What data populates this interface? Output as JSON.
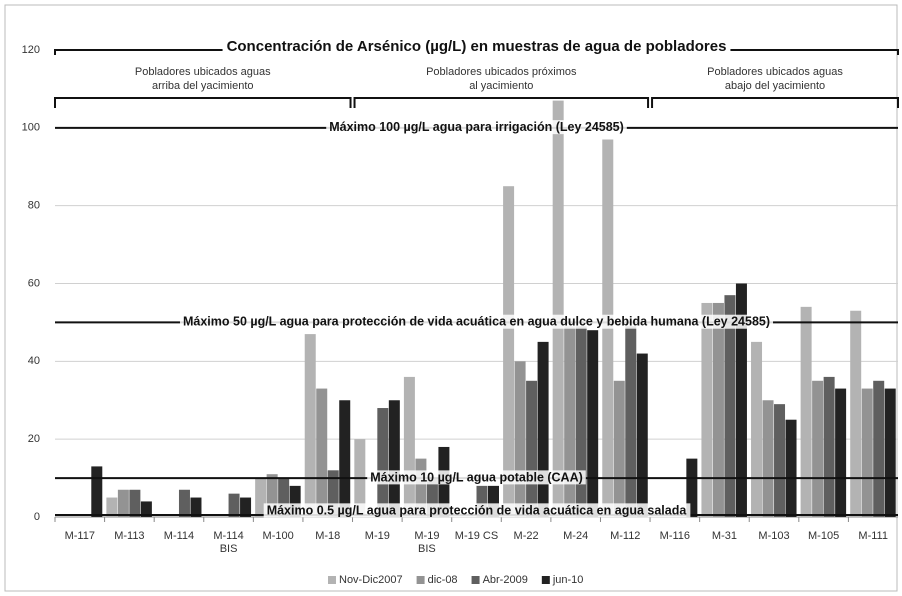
{
  "chart_data": {
    "type": "bar",
    "title": "Concentración de Arsénico (µg/L)  en muestras de agua de pobladores",
    "categories": [
      "M-117",
      "M-113",
      "M-114",
      "M-114\nBIS",
      "M-100",
      "M-18",
      "M-19",
      "M-19\nBIS",
      "M-19 CS",
      "M-22",
      "M-24",
      "M-112",
      "M-116",
      "M-31",
      "M-103",
      "M-105",
      "M-111"
    ],
    "series": [
      {
        "name": "Nov-Dic2007",
        "color": "#b3b3b3",
        "values": [
          null,
          5,
          null,
          null,
          10,
          47,
          20,
          36,
          null,
          85,
          107,
          97,
          null,
          55,
          45,
          54,
          53
        ]
      },
      {
        "name": "dic-08",
        "color": "#939393",
        "values": [
          null,
          7,
          null,
          null,
          11,
          33,
          null,
          15,
          null,
          40,
          49,
          35,
          null,
          55,
          30,
          35,
          33
        ]
      },
      {
        "name": "Abr-2009",
        "color": "#5f5f5f",
        "values": [
          null,
          7,
          7,
          6,
          10,
          12,
          28,
          10,
          8,
          35,
          49,
          49,
          null,
          57,
          29,
          36,
          35
        ]
      },
      {
        "name": "jun-10",
        "color": "#222222",
        "values": [
          13,
          4,
          5,
          5,
          8,
          30,
          30,
          18,
          8,
          45,
          48,
          42,
          15,
          60,
          25,
          33,
          33
        ]
      }
    ],
    "ylim": [
      0,
      120
    ],
    "yticks": [
      0,
      20,
      40,
      60,
      80,
      100,
      120
    ],
    "grid": true,
    "legend": "bottom",
    "annotations": [
      "Pobladores ubicados aguas\narriba del yacimiento",
      "Pobladores ubicados próximos\nal yacimiento",
      "Pobladores ubicados aguas\nabajo del yacimiento"
    ],
    "reference_lines": [
      {
        "value": 100,
        "label": "Máximo 100 µg/L agua para irrigación (Ley 24585)"
      },
      {
        "value": 50,
        "label": "Máximo 50 µg/L agua para protección de vida acuática en agua dulce  y  bebida humana (Ley 24585)"
      },
      {
        "value": 10,
        "label": "Máximo 10 µg/L agua potable (CAA)"
      },
      {
        "value": 0.5,
        "label": "Máximo 0.5 µg/L agua para protección de vida acuática en agua salada"
      }
    ]
  }
}
